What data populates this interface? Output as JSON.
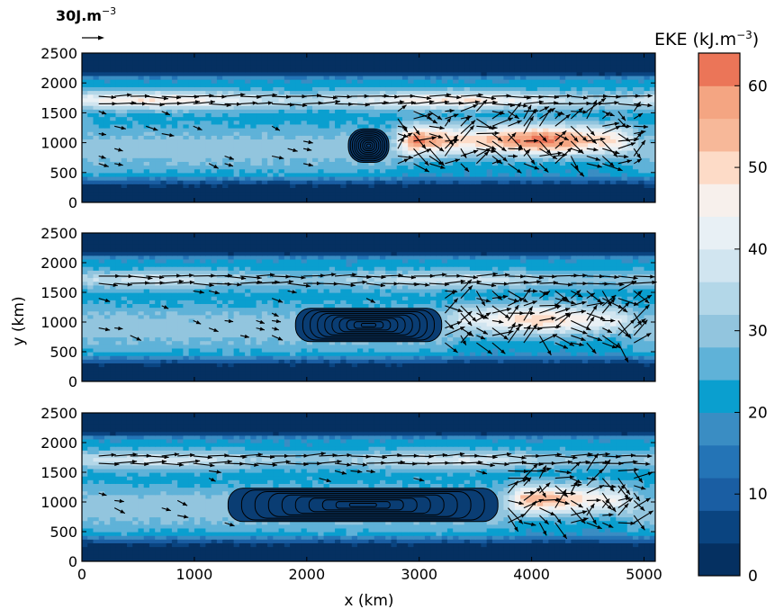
{
  "figure": {
    "reference_vector_label": "30J.m",
    "reference_vector_exp": "−3",
    "ylabel": "y (km)",
    "xlabel": "x (km)"
  },
  "colorbar": {
    "title_main": "EKE (kJ.m",
    "title_exp": "−3",
    "title_close": ")",
    "min": 0,
    "max": 64,
    "step": 4,
    "ticks": [
      0,
      10,
      20,
      30,
      40,
      50,
      60
    ],
    "colors": [
      "#053061",
      "#0a4480",
      "#1a5ea3",
      "#2474b6",
      "#3a8dc3",
      "#0a9fcf",
      "#5fb2d8",
      "#92c5de",
      "#b3d7e8",
      "#d1e5f0",
      "#e8f0f5",
      "#f7f0ec",
      "#fddbc7",
      "#f7b899",
      "#f4a582",
      "#eb7558",
      "#d6604d",
      "#d23a3a",
      "#c0142b",
      "#a50f2a",
      "#8c0a26",
      "#67001f"
    ]
  },
  "chart_data": [
    {
      "type": "heatmap",
      "panel": 1,
      "variable": "EKE",
      "units": "kJ.m^-3",
      "xlim": [
        0,
        5100
      ],
      "ylim": [
        0,
        2500
      ],
      "xticks": [],
      "yticks": [
        0,
        500,
        1000,
        1500,
        2000,
        2500
      ],
      "features": {
        "jet_band_y": [
          1550,
          1900
        ],
        "jet_peak_eke": 50,
        "mid_band_y": [
          900,
          1200
        ],
        "mid_band_eke_east": 60,
        "west_background_eke": 20,
        "obstacle_center_x": 2550,
        "obstacle_center_y": 950,
        "obstacle_half_width_km": 180,
        "obstacle_half_height_km": 280
      }
    },
    {
      "type": "heatmap",
      "panel": 2,
      "variable": "EKE",
      "units": "kJ.m^-3",
      "xlim": [
        0,
        5100
      ],
      "ylim": [
        0,
        2500
      ],
      "xticks": [],
      "yticks": [
        0,
        500,
        1000,
        1500,
        2000,
        2500
      ],
      "features": {
        "jet_band_y": [
          1550,
          1900
        ],
        "jet_peak_eke": 32,
        "mid_band_y": [
          900,
          1200
        ],
        "mid_band_eke_east": 48,
        "west_background_eke": 20,
        "obstacle_center_x": 2550,
        "obstacle_center_y": 950,
        "obstacle_half_width_km": 650,
        "obstacle_half_height_km": 280
      }
    },
    {
      "type": "heatmap",
      "panel": 3,
      "variable": "EKE",
      "units": "kJ.m^-3",
      "xlim": [
        0,
        5100
      ],
      "ylim": [
        0,
        2500
      ],
      "xticks": [
        0,
        1000,
        2000,
        3000,
        4000,
        5000
      ],
      "yticks": [
        0,
        500,
        1000,
        1500,
        2000,
        2500
      ],
      "features": {
        "jet_band_y": [
          1550,
          1900
        ],
        "jet_peak_eke": 34,
        "mid_band_y": [
          900,
          1200
        ],
        "mid_band_eke_east": 52,
        "west_background_eke": 20,
        "obstacle_center_x": 2500,
        "obstacle_center_y": 950,
        "obstacle_half_width_km": 1200,
        "obstacle_half_height_km": 280
      }
    }
  ]
}
